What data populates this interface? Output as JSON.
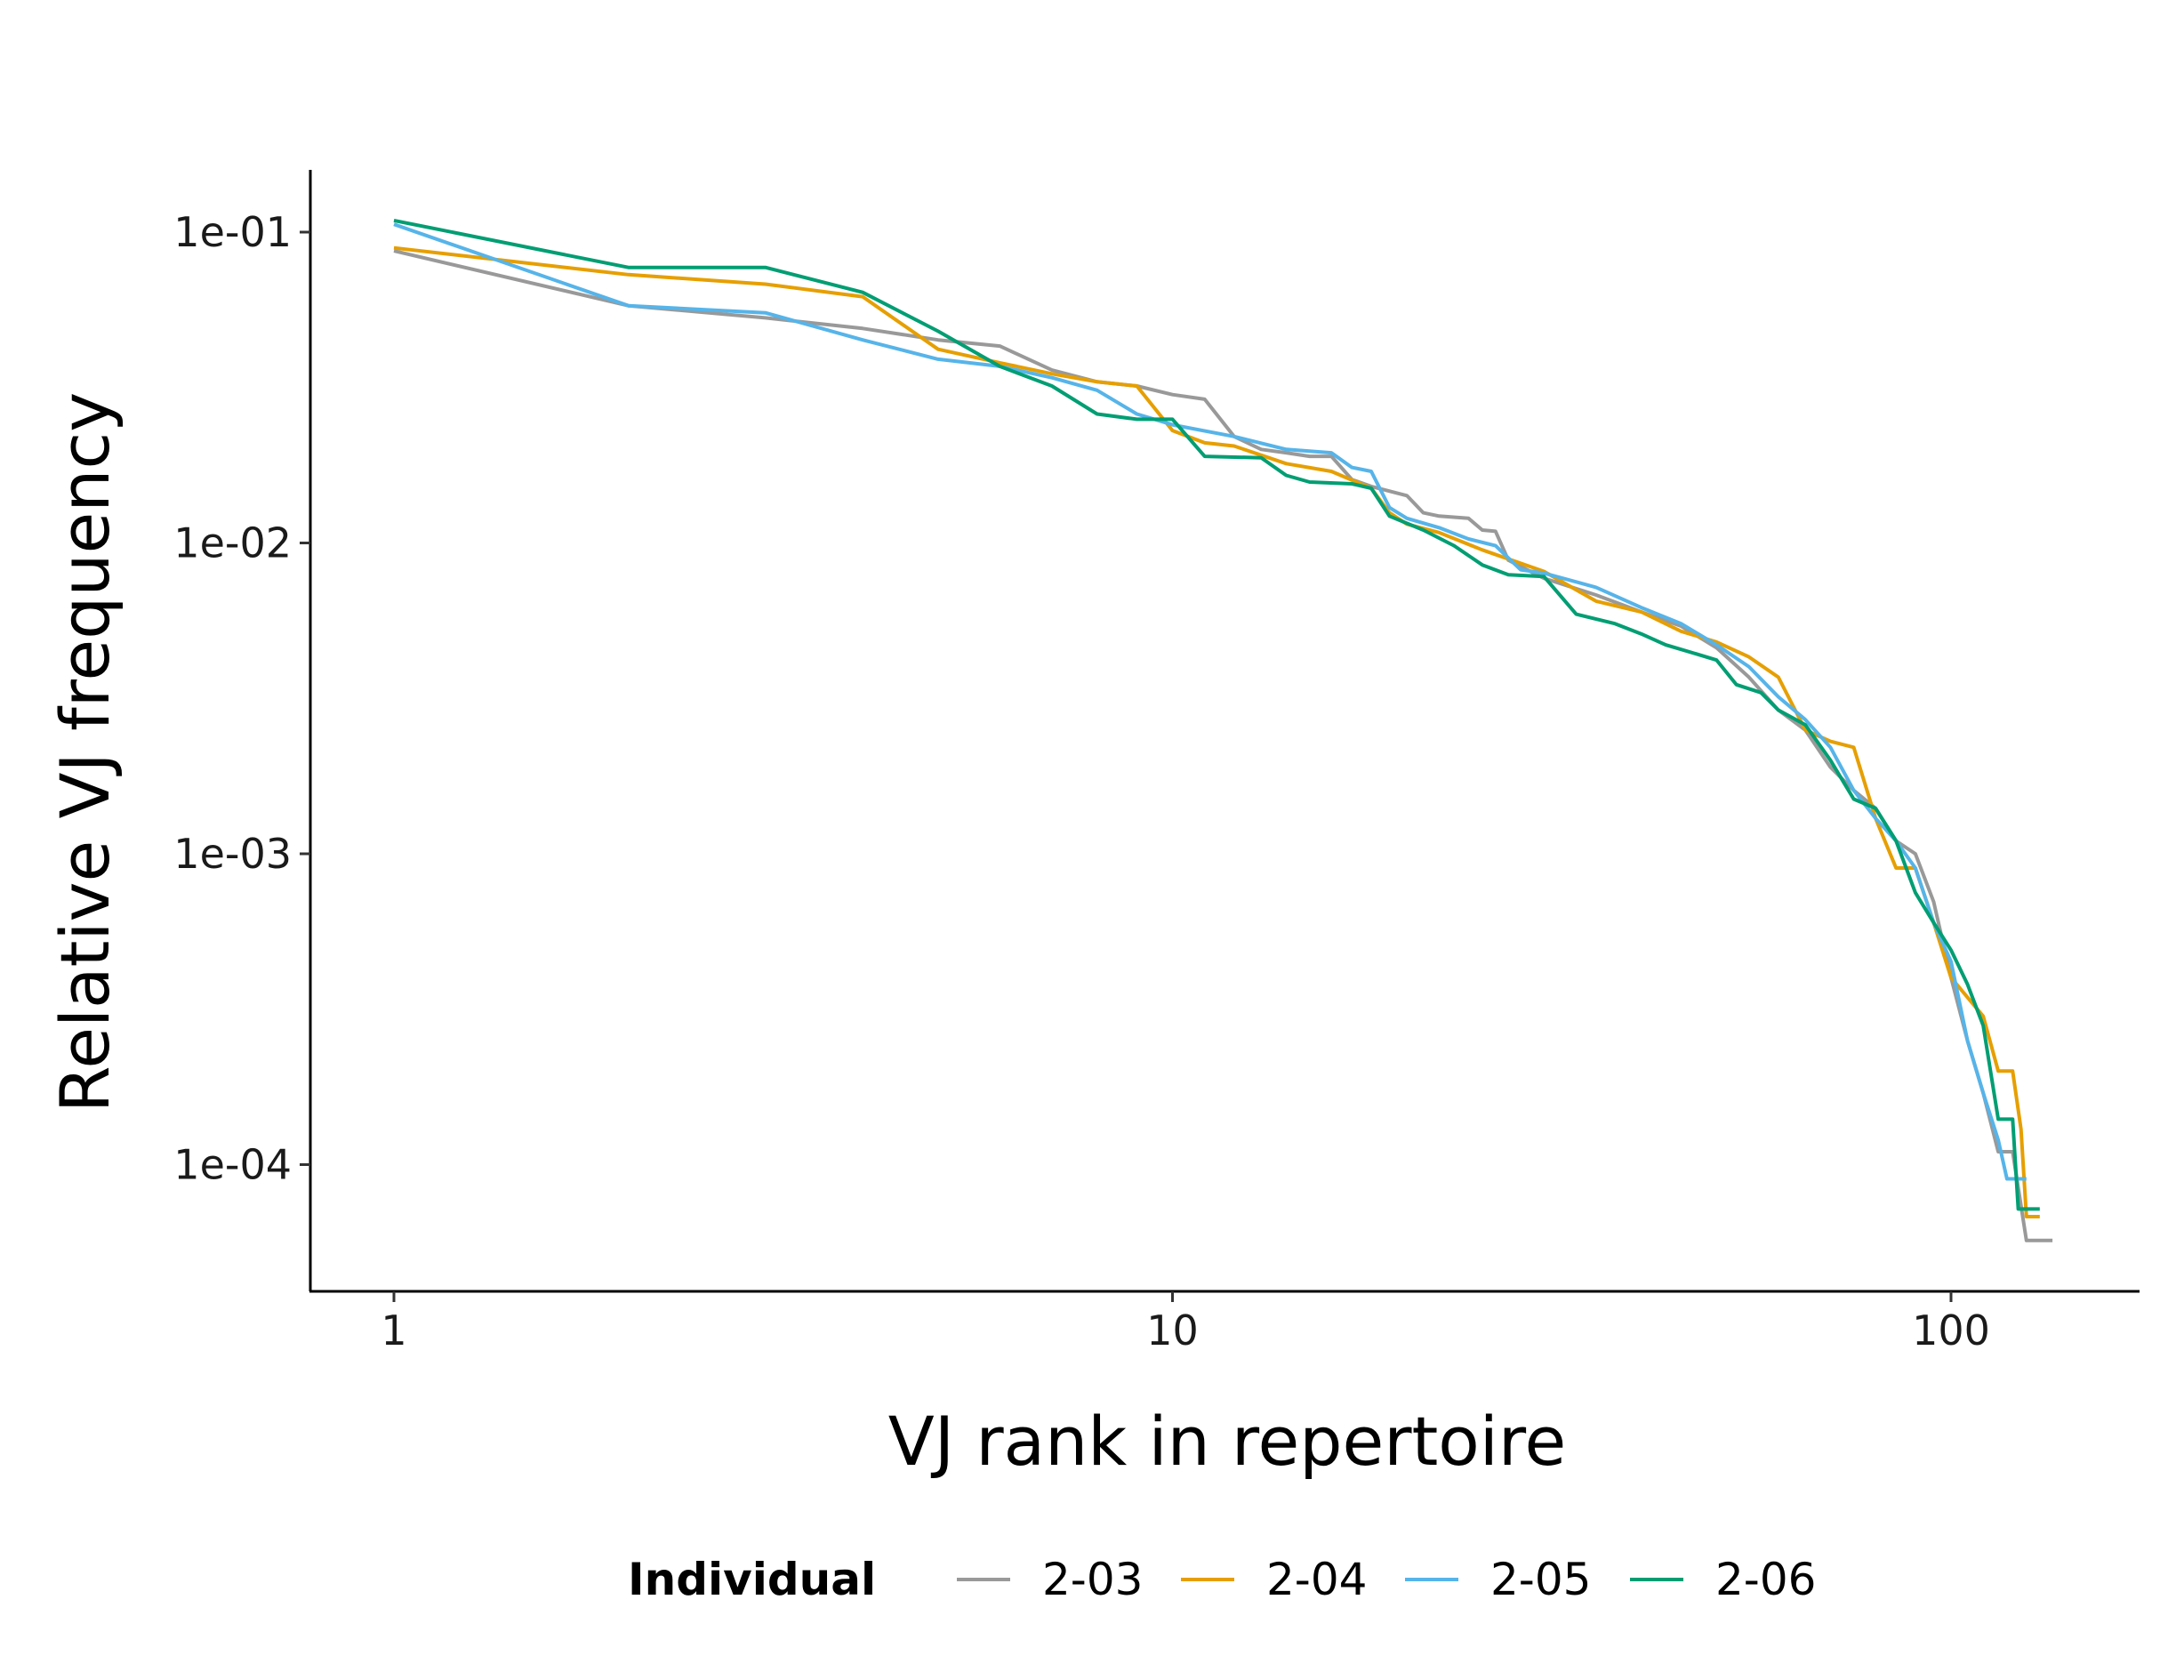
{
  "chart_data": {
    "type": "line",
    "title": "",
    "xlabel": "VJ rank in repertoire",
    "ylabel": "Relative VJ frequency",
    "xscale": "log",
    "yscale": "log",
    "xlim": [
      0.8,
      160
    ],
    "ylim": [
      4.3e-05,
      0.16
    ],
    "xticks": [
      1,
      10,
      100
    ],
    "xtick_labels": [
      "1",
      "10",
      "100"
    ],
    "yticks": [
      0.1,
      0.01,
      0.001,
      0.0001
    ],
    "ytick_labels": [
      "1e-01",
      "1e-02",
      "1e-03",
      "1e-04"
    ],
    "grid": false,
    "legend": {
      "title": "Individual",
      "position": "bottom"
    },
    "series": [
      {
        "name": "2-03",
        "color": "#999999",
        "points": [
          [
            1,
            0.087
          ],
          [
            2,
            0.058
          ],
          [
            3,
            0.053
          ],
          [
            4,
            0.049
          ],
          [
            5,
            0.045
          ],
          [
            6,
            0.043
          ],
          [
            7,
            0.036
          ],
          [
            8,
            0.033
          ],
          [
            9,
            0.032
          ],
          [
            10,
            0.03
          ],
          [
            11,
            0.029
          ],
          [
            12,
            0.022
          ],
          [
            13,
            0.02
          ],
          [
            14,
            0.0195
          ],
          [
            15,
            0.019
          ],
          [
            16,
            0.019
          ],
          [
            17,
            0.016
          ],
          [
            18,
            0.0152
          ],
          [
            20,
            0.0142
          ],
          [
            21,
            0.0125
          ],
          [
            22,
            0.0122
          ],
          [
            24,
            0.012
          ],
          [
            25,
            0.011
          ],
          [
            26,
            0.0109
          ],
          [
            27,
            0.0088
          ],
          [
            30,
            0.0077
          ],
          [
            35,
            0.0068
          ],
          [
            40,
            0.006
          ],
          [
            45,
            0.0054
          ],
          [
            50,
            0.0046
          ],
          [
            55,
            0.0037
          ],
          [
            60,
            0.0029
          ],
          [
            65,
            0.0025
          ],
          [
            70,
            0.0019
          ],
          [
            75,
            0.0016
          ],
          [
            80,
            0.0014
          ],
          [
            85,
            0.0011
          ],
          [
            90,
            0.001
          ],
          [
            95,
            0.0007
          ],
          [
            100,
            0.0004
          ],
          [
            105,
            0.00025
          ],
          [
            110,
            0.00017
          ],
          [
            115,
            0.00011
          ],
          [
            120,
            0.00011
          ],
          [
            125,
            5.7e-05
          ],
          [
            135,
            5.7e-05
          ]
        ]
      },
      {
        "name": "2-04",
        "color": "#E69F00",
        "points": [
          [
            1,
            0.089
          ],
          [
            2,
            0.073
          ],
          [
            3,
            0.068
          ],
          [
            4,
            0.062
          ],
          [
            5,
            0.042
          ],
          [
            6,
            0.038
          ],
          [
            7,
            0.035
          ],
          [
            8,
            0.033
          ],
          [
            9,
            0.032
          ],
          [
            10,
            0.023
          ],
          [
            11,
            0.021
          ],
          [
            12,
            0.0205
          ],
          [
            14,
            0.018
          ],
          [
            16,
            0.017
          ],
          [
            18,
            0.015
          ],
          [
            19,
            0.0125
          ],
          [
            20,
            0.0115
          ],
          [
            22,
            0.0108
          ],
          [
            25,
            0.0095
          ],
          [
            30,
            0.0081
          ],
          [
            35,
            0.0065
          ],
          [
            40,
            0.006
          ],
          [
            45,
            0.0052
          ],
          [
            50,
            0.0048
          ],
          [
            55,
            0.0043
          ],
          [
            60,
            0.0037
          ],
          [
            65,
            0.0025
          ],
          [
            70,
            0.0023
          ],
          [
            75,
            0.0022
          ],
          [
            80,
            0.0013
          ],
          [
            85,
            0.0009
          ],
          [
            90,
            0.0009
          ],
          [
            95,
            0.0006
          ],
          [
            100,
            0.0004
          ],
          [
            110,
            0.0003
          ],
          [
            115,
            0.0002
          ],
          [
            120,
            0.0002
          ],
          [
            123,
            0.00013
          ],
          [
            125,
            6.8e-05
          ],
          [
            130,
            6.8e-05
          ]
        ]
      },
      {
        "name": "2-05",
        "color": "#56B4E9",
        "points": [
          [
            1,
            0.106
          ],
          [
            2,
            0.058
          ],
          [
            3,
            0.055
          ],
          [
            4,
            0.045
          ],
          [
            5,
            0.039
          ],
          [
            6,
            0.037
          ],
          [
            7,
            0.034
          ],
          [
            8,
            0.031
          ],
          [
            9,
            0.026
          ],
          [
            10,
            0.024
          ],
          [
            12,
            0.022
          ],
          [
            14,
            0.02
          ],
          [
            16,
            0.0195
          ],
          [
            17,
            0.0175
          ],
          [
            18,
            0.017
          ],
          [
            19,
            0.013
          ],
          [
            20,
            0.012
          ],
          [
            22,
            0.0112
          ],
          [
            24,
            0.0103
          ],
          [
            26,
            0.0098
          ],
          [
            28,
            0.0082
          ],
          [
            30,
            0.008
          ],
          [
            35,
            0.0072
          ],
          [
            40,
            0.0062
          ],
          [
            45,
            0.0055
          ],
          [
            50,
            0.0047
          ],
          [
            55,
            0.004
          ],
          [
            60,
            0.0032
          ],
          [
            65,
            0.0027
          ],
          [
            70,
            0.0022
          ],
          [
            75,
            0.0016
          ],
          [
            80,
            0.0013
          ],
          [
            85,
            0.0011
          ],
          [
            90,
            0.0009
          ],
          [
            95,
            0.0006
          ],
          [
            100,
            0.00045
          ],
          [
            105,
            0.00025
          ],
          [
            110,
            0.00017
          ],
          [
            115,
            0.00012
          ],
          [
            118,
            9e-05
          ],
          [
            125,
            9e-05
          ]
        ]
      },
      {
        "name": "2-06",
        "color": "#009E73",
        "points": [
          [
            1,
            0.109
          ],
          [
            2,
            0.077
          ],
          [
            3,
            0.077
          ],
          [
            4,
            0.064
          ],
          [
            5,
            0.048
          ],
          [
            6,
            0.037
          ],
          [
            7,
            0.032
          ],
          [
            8,
            0.026
          ],
          [
            9,
            0.025
          ],
          [
            10,
            0.025
          ],
          [
            11,
            0.019
          ],
          [
            13,
            0.0188
          ],
          [
            14,
            0.0165
          ],
          [
            15,
            0.0157
          ],
          [
            17,
            0.0155
          ],
          [
            18,
            0.015
          ],
          [
            19,
            0.0122
          ],
          [
            21,
            0.011
          ],
          [
            23,
            0.0098
          ],
          [
            25,
            0.0085
          ],
          [
            27,
            0.0079
          ],
          [
            30,
            0.0078
          ],
          [
            33,
            0.0059
          ],
          [
            37,
            0.0055
          ],
          [
            40,
            0.0051
          ],
          [
            43,
            0.0047
          ],
          [
            47,
            0.0044
          ],
          [
            50,
            0.0042
          ],
          [
            53,
            0.0035
          ],
          [
            57,
            0.0033
          ],
          [
            60,
            0.0029
          ],
          [
            65,
            0.0026
          ],
          [
            70,
            0.002
          ],
          [
            75,
            0.0015
          ],
          [
            80,
            0.0014
          ],
          [
            85,
            0.0011
          ],
          [
            90,
            0.00075
          ],
          [
            95,
            0.0006
          ],
          [
            100,
            0.00049
          ],
          [
            105,
            0.00038
          ],
          [
            110,
            0.00028
          ],
          [
            115,
            0.00014
          ],
          [
            120,
            0.00014
          ],
          [
            122,
            7.2e-05
          ],
          [
            130,
            7.2e-05
          ]
        ]
      }
    ]
  }
}
